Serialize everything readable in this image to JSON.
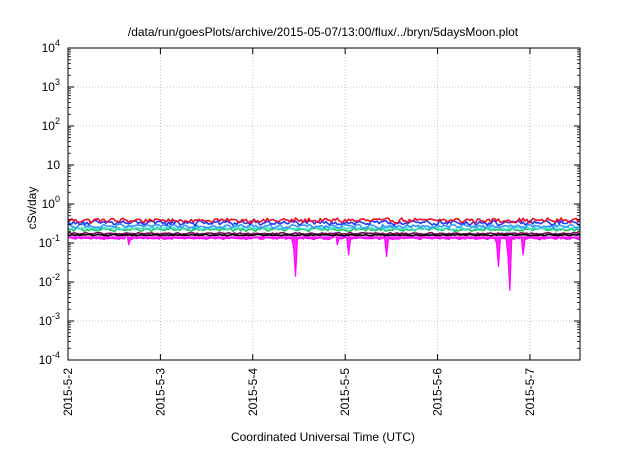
{
  "chart_data": {
    "type": "line",
    "title": "/data/run/goesPlots/archive/2015-05-07/13:00/flux/../bryn/5daysMoon.plot",
    "xlabel": "Coordinated Universal Time (UTC)",
    "ylabel": "cSv/day",
    "yscale": "log",
    "ylim": [
      0.0001,
      10000
    ],
    "xlim": [
      "2015-05-02T00:00",
      "2015-05-07T13:00"
    ],
    "grid": true,
    "legend": "none",
    "y_ticks": [
      {
        "value": 0.0001,
        "base": "10",
        "exp": "-4"
      },
      {
        "value": 0.001,
        "base": "10",
        "exp": "-3"
      },
      {
        "value": 0.01,
        "base": "10",
        "exp": "-2"
      },
      {
        "value": 0.1,
        "base": "10",
        "exp": "-1"
      },
      {
        "value": 1,
        "base": "10",
        "exp": "0"
      },
      {
        "value": 10,
        "base": "10",
        "exp": ""
      },
      {
        "value": 100,
        "base": "10",
        "exp": "2"
      },
      {
        "value": 1000,
        "base": "10",
        "exp": "3"
      },
      {
        "value": 10000,
        "base": "10",
        "exp": "4"
      }
    ],
    "x_ticks": [
      {
        "value": "2015-05-02T00:00",
        "label": "2015-5-2"
      },
      {
        "value": "2015-05-03T00:00",
        "label": "2015-5-3"
      },
      {
        "value": "2015-05-04T00:00",
        "label": "2015-5-4"
      },
      {
        "value": "2015-05-05T00:00",
        "label": "2015-5-5"
      },
      {
        "value": "2015-05-06T00:00",
        "label": "2015-5-6"
      },
      {
        "value": "2015-05-07T00:00",
        "label": "2015-5-7"
      }
    ],
    "series": [
      {
        "color": "#e8102a",
        "baseline": 0.38,
        "noise": 0.12,
        "dips": []
      },
      {
        "color": "#1f3cff",
        "baseline": 0.33,
        "noise": 0.12,
        "dips": []
      },
      {
        "color": "#3399ff",
        "baseline": 0.27,
        "noise": 0.1,
        "dips": []
      },
      {
        "color": "#20c060",
        "baseline": 0.22,
        "noise": 0.08,
        "dips": []
      },
      {
        "color": "#40e0d0",
        "baseline": 0.24,
        "noise": 0.08,
        "dips": []
      },
      {
        "color": "#000000",
        "baseline": 0.16,
        "noise": 0.03,
        "dips": []
      },
      {
        "color": "#7a0a5a",
        "baseline": 0.175,
        "noise": 0.04,
        "dips": []
      },
      {
        "color": "#ff00ff",
        "baseline": 0.13,
        "noise": 0.05,
        "fill": true,
        "dips": [
          {
            "x": "2015-05-04T11:00",
            "y": 0.014
          },
          {
            "x": "2015-05-05T01:00",
            "y": 0.05
          },
          {
            "x": "2015-05-05T11:00",
            "y": 0.045
          },
          {
            "x": "2015-05-06T16:00",
            "y": 0.025
          },
          {
            "x": "2015-05-06T19:00",
            "y": 0.006
          },
          {
            "x": "2015-05-06T22:00",
            "y": 0.05
          },
          {
            "x": "2015-05-02T16:00",
            "y": 0.09
          },
          {
            "x": "2015-05-04T22:00",
            "y": 0.09
          }
        ]
      }
    ]
  }
}
